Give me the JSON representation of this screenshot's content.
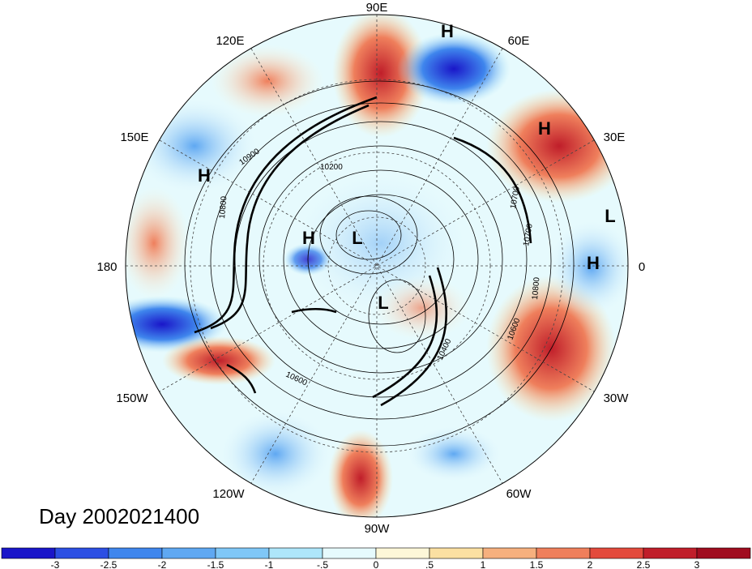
{
  "title": "Day 2002021400",
  "longitude_labels": [
    "90E",
    "60E",
    "30E",
    "0",
    "30W",
    "60W",
    "90W",
    "120W",
    "150W",
    "180",
    "150E",
    "120E"
  ],
  "pressure_centers": [
    {
      "type": "H",
      "lon": 75,
      "lat": 28
    },
    {
      "type": "H",
      "lon": 35,
      "lat": 38
    },
    {
      "type": "L",
      "lon": 10,
      "lat": 32
    },
    {
      "type": "H",
      "lon": 3,
      "lat": 30
    },
    {
      "type": "H",
      "lon": 155,
      "lat": 35
    },
    {
      "type": "H",
      "lon": 170,
      "lat": 76
    },
    {
      "type": "L",
      "lon": 110,
      "lat": 80
    },
    {
      "type": "L",
      "lon": -70,
      "lat": 81
    }
  ],
  "contour_labels": [
    "10900",
    "10200",
    "10700",
    "10700",
    "10800",
    "10600",
    "10600",
    "10400",
    "10800"
  ],
  "colorbar": {
    "tick_labels": [
      "-3",
      "-2.5",
      "-2",
      "-1.5",
      "-1",
      "-.5",
      "0",
      ".5",
      "1",
      "1.5",
      "2",
      "2.5",
      "3"
    ],
    "colors": [
      "#1a16c9",
      "#2c4fe3",
      "#3f86ed",
      "#5fa8f2",
      "#7fc7f7",
      "#aee6fa",
      "#e6fafd",
      "#fdf7d8",
      "#fbe0a2",
      "#f6b07e",
      "#ef7f5c",
      "#e34a3c",
      "#c01e2a",
      "#a00c1f"
    ]
  },
  "map": {
    "projection": "north polar stereographic",
    "field": "anomaly (shaded)",
    "contour_field": "geopotential height (contours)"
  }
}
